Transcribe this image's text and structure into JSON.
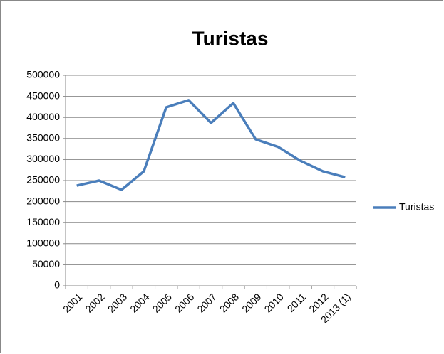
{
  "chart_data": {
    "type": "line",
    "title": "Turistas",
    "categories": [
      "2001",
      "2002",
      "2003",
      "2004",
      "2005",
      "2006",
      "2007",
      "2008",
      "2009",
      "2010",
      "2011",
      "2012",
      "2013 (1)"
    ],
    "series": [
      {
        "name": "Turistas",
        "color": "#4a7ebb",
        "values": [
          238000,
          250000,
          228000,
          272000,
          424000,
          441000,
          387000,
          434000,
          348000,
          330000,
          297000,
          272000,
          258000
        ]
      }
    ],
    "ylim": [
      0,
      500000
    ],
    "yticks": [
      0,
      50000,
      100000,
      150000,
      200000,
      250000,
      300000,
      350000,
      400000,
      450000,
      500000
    ],
    "grid": true,
    "legend": "right"
  }
}
